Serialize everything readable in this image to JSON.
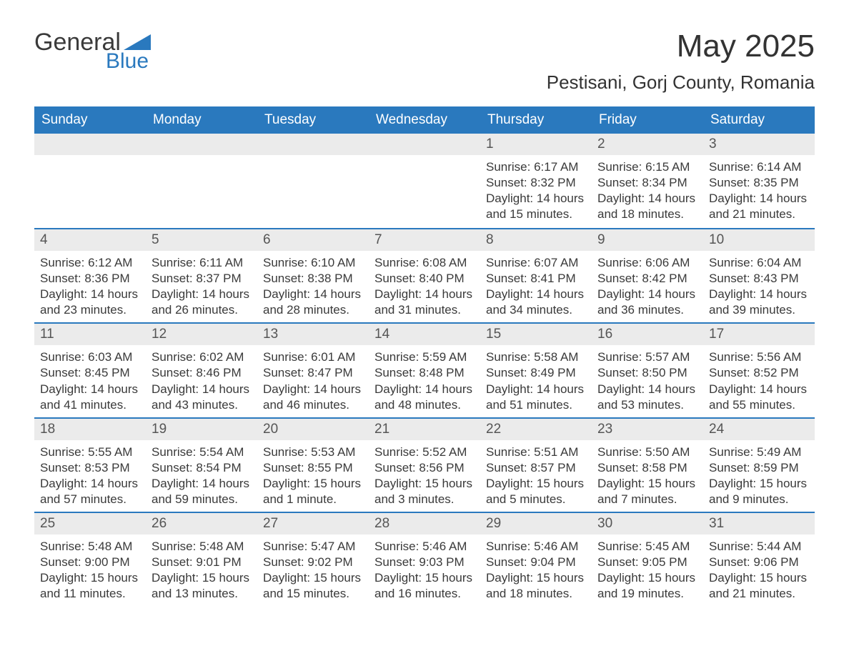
{
  "brand": {
    "part1": "General",
    "part2": "Blue",
    "triangle_color": "#2a79be"
  },
  "title": {
    "month_year": "May 2025",
    "location": "Pestisani, Gorj County, Romania"
  },
  "colors": {
    "header_bg": "#2a79be",
    "header_text": "#ffffff",
    "daynum_bg": "#ebebeb",
    "text": "#3a3a3a",
    "week_border": "#2a79be"
  },
  "day_names": [
    "Sunday",
    "Monday",
    "Tuesday",
    "Wednesday",
    "Thursday",
    "Friday",
    "Saturday"
  ],
  "weeks": [
    [
      {
        "day": "",
        "sunrise": "",
        "sunset": "",
        "daylight": ""
      },
      {
        "day": "",
        "sunrise": "",
        "sunset": "",
        "daylight": ""
      },
      {
        "day": "",
        "sunrise": "",
        "sunset": "",
        "daylight": ""
      },
      {
        "day": "",
        "sunrise": "",
        "sunset": "",
        "daylight": ""
      },
      {
        "day": "1",
        "sunrise": "Sunrise: 6:17 AM",
        "sunset": "Sunset: 8:32 PM",
        "daylight": "Daylight: 14 hours and 15 minutes."
      },
      {
        "day": "2",
        "sunrise": "Sunrise: 6:15 AM",
        "sunset": "Sunset: 8:34 PM",
        "daylight": "Daylight: 14 hours and 18 minutes."
      },
      {
        "day": "3",
        "sunrise": "Sunrise: 6:14 AM",
        "sunset": "Sunset: 8:35 PM",
        "daylight": "Daylight: 14 hours and 21 minutes."
      }
    ],
    [
      {
        "day": "4",
        "sunrise": "Sunrise: 6:12 AM",
        "sunset": "Sunset: 8:36 PM",
        "daylight": "Daylight: 14 hours and 23 minutes."
      },
      {
        "day": "5",
        "sunrise": "Sunrise: 6:11 AM",
        "sunset": "Sunset: 8:37 PM",
        "daylight": "Daylight: 14 hours and 26 minutes."
      },
      {
        "day": "6",
        "sunrise": "Sunrise: 6:10 AM",
        "sunset": "Sunset: 8:38 PM",
        "daylight": "Daylight: 14 hours and 28 minutes."
      },
      {
        "day": "7",
        "sunrise": "Sunrise: 6:08 AM",
        "sunset": "Sunset: 8:40 PM",
        "daylight": "Daylight: 14 hours and 31 minutes."
      },
      {
        "day": "8",
        "sunrise": "Sunrise: 6:07 AM",
        "sunset": "Sunset: 8:41 PM",
        "daylight": "Daylight: 14 hours and 34 minutes."
      },
      {
        "day": "9",
        "sunrise": "Sunrise: 6:06 AM",
        "sunset": "Sunset: 8:42 PM",
        "daylight": "Daylight: 14 hours and 36 minutes."
      },
      {
        "day": "10",
        "sunrise": "Sunrise: 6:04 AM",
        "sunset": "Sunset: 8:43 PM",
        "daylight": "Daylight: 14 hours and 39 minutes."
      }
    ],
    [
      {
        "day": "11",
        "sunrise": "Sunrise: 6:03 AM",
        "sunset": "Sunset: 8:45 PM",
        "daylight": "Daylight: 14 hours and 41 minutes."
      },
      {
        "day": "12",
        "sunrise": "Sunrise: 6:02 AM",
        "sunset": "Sunset: 8:46 PM",
        "daylight": "Daylight: 14 hours and 43 minutes."
      },
      {
        "day": "13",
        "sunrise": "Sunrise: 6:01 AM",
        "sunset": "Sunset: 8:47 PM",
        "daylight": "Daylight: 14 hours and 46 minutes."
      },
      {
        "day": "14",
        "sunrise": "Sunrise: 5:59 AM",
        "sunset": "Sunset: 8:48 PM",
        "daylight": "Daylight: 14 hours and 48 minutes."
      },
      {
        "day": "15",
        "sunrise": "Sunrise: 5:58 AM",
        "sunset": "Sunset: 8:49 PM",
        "daylight": "Daylight: 14 hours and 51 minutes."
      },
      {
        "day": "16",
        "sunrise": "Sunrise: 5:57 AM",
        "sunset": "Sunset: 8:50 PM",
        "daylight": "Daylight: 14 hours and 53 minutes."
      },
      {
        "day": "17",
        "sunrise": "Sunrise: 5:56 AM",
        "sunset": "Sunset: 8:52 PM",
        "daylight": "Daylight: 14 hours and 55 minutes."
      }
    ],
    [
      {
        "day": "18",
        "sunrise": "Sunrise: 5:55 AM",
        "sunset": "Sunset: 8:53 PM",
        "daylight": "Daylight: 14 hours and 57 minutes."
      },
      {
        "day": "19",
        "sunrise": "Sunrise: 5:54 AM",
        "sunset": "Sunset: 8:54 PM",
        "daylight": "Daylight: 14 hours and 59 minutes."
      },
      {
        "day": "20",
        "sunrise": "Sunrise: 5:53 AM",
        "sunset": "Sunset: 8:55 PM",
        "daylight": "Daylight: 15 hours and 1 minute."
      },
      {
        "day": "21",
        "sunrise": "Sunrise: 5:52 AM",
        "sunset": "Sunset: 8:56 PM",
        "daylight": "Daylight: 15 hours and 3 minutes."
      },
      {
        "day": "22",
        "sunrise": "Sunrise: 5:51 AM",
        "sunset": "Sunset: 8:57 PM",
        "daylight": "Daylight: 15 hours and 5 minutes."
      },
      {
        "day": "23",
        "sunrise": "Sunrise: 5:50 AM",
        "sunset": "Sunset: 8:58 PM",
        "daylight": "Daylight: 15 hours and 7 minutes."
      },
      {
        "day": "24",
        "sunrise": "Sunrise: 5:49 AM",
        "sunset": "Sunset: 8:59 PM",
        "daylight": "Daylight: 15 hours and 9 minutes."
      }
    ],
    [
      {
        "day": "25",
        "sunrise": "Sunrise: 5:48 AM",
        "sunset": "Sunset: 9:00 PM",
        "daylight": "Daylight: 15 hours and 11 minutes."
      },
      {
        "day": "26",
        "sunrise": "Sunrise: 5:48 AM",
        "sunset": "Sunset: 9:01 PM",
        "daylight": "Daylight: 15 hours and 13 minutes."
      },
      {
        "day": "27",
        "sunrise": "Sunrise: 5:47 AM",
        "sunset": "Sunset: 9:02 PM",
        "daylight": "Daylight: 15 hours and 15 minutes."
      },
      {
        "day": "28",
        "sunrise": "Sunrise: 5:46 AM",
        "sunset": "Sunset: 9:03 PM",
        "daylight": "Daylight: 15 hours and 16 minutes."
      },
      {
        "day": "29",
        "sunrise": "Sunrise: 5:46 AM",
        "sunset": "Sunset: 9:04 PM",
        "daylight": "Daylight: 15 hours and 18 minutes."
      },
      {
        "day": "30",
        "sunrise": "Sunrise: 5:45 AM",
        "sunset": "Sunset: 9:05 PM",
        "daylight": "Daylight: 15 hours and 19 minutes."
      },
      {
        "day": "31",
        "sunrise": "Sunrise: 5:44 AM",
        "sunset": "Sunset: 9:06 PM",
        "daylight": "Daylight: 15 hours and 21 minutes."
      }
    ]
  ]
}
